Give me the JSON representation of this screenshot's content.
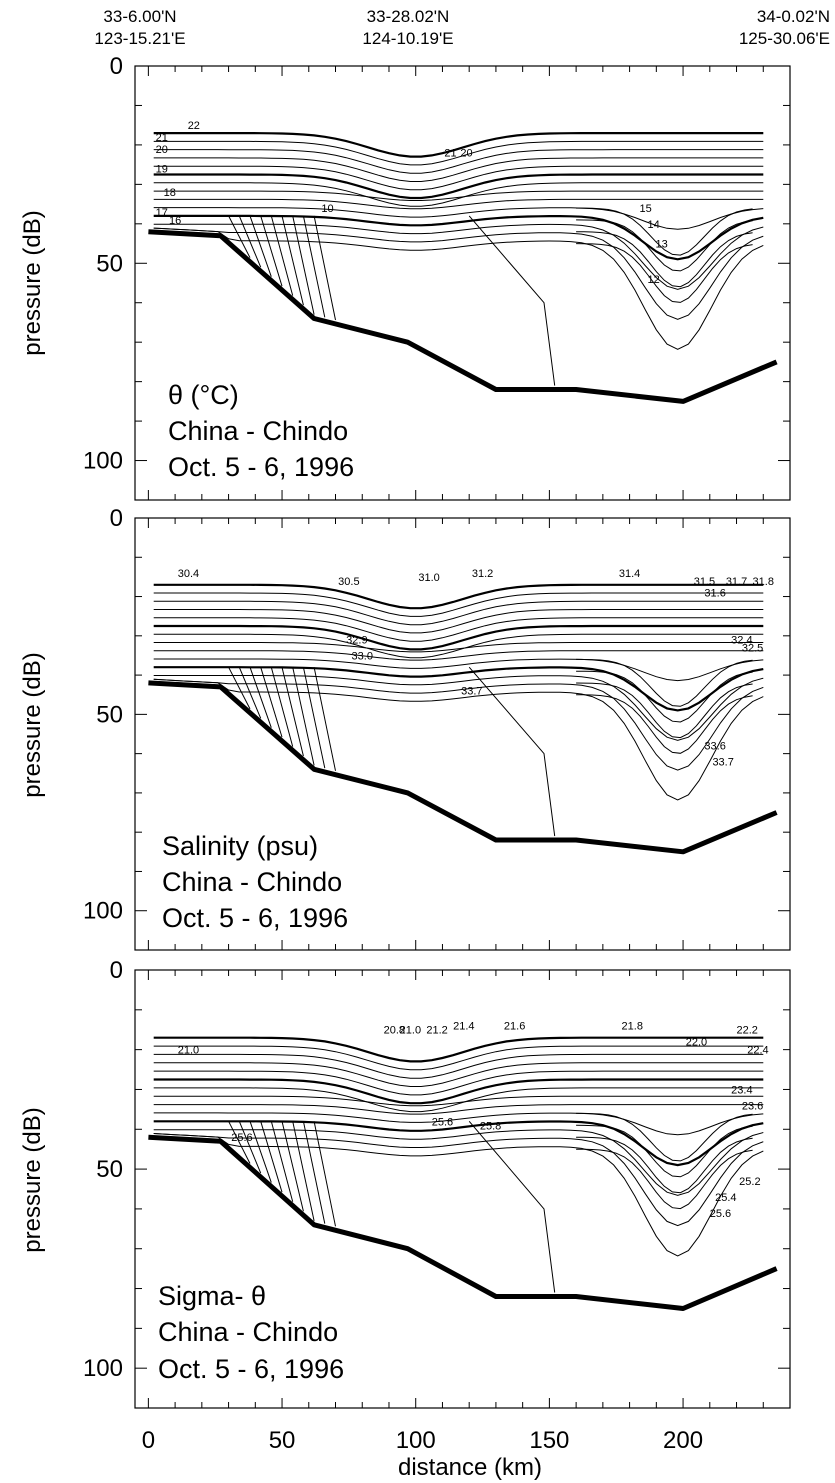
{
  "figure": {
    "top_coords": [
      {
        "lat": "33-6.00'N",
        "lon": "123-15.21'E",
        "at_km": 0
      },
      {
        "lat": "33-28.02'N",
        "lon": "124-10.19'E",
        "at_km": 100
      },
      {
        "lat": "34-0.02'N",
        "lon": "125-30.06'E",
        "at_km": 232
      }
    ],
    "xlabel": "distance (km)",
    "xticks": [
      0,
      50,
      100,
      150,
      200
    ],
    "colors": {
      "ink": "#000000",
      "background": "#ffffff"
    }
  },
  "chart_data": [
    {
      "type": "contour",
      "panel": "theta",
      "label_lines": [
        "θ  (°C)",
        "China - Chindo",
        "Oct. 5 - 6, 1996"
      ],
      "ylabel": "pressure (dB)",
      "yticks": [
        0,
        50,
        100
      ],
      "ylim": [
        0,
        110
      ],
      "xlim": [
        -5,
        240
      ],
      "bathymetry": [
        [
          0,
          42
        ],
        [
          27,
          43
        ],
        [
          62,
          64
        ],
        [
          97,
          70
        ],
        [
          130,
          82
        ],
        [
          160,
          82
        ],
        [
          200,
          85
        ],
        [
          235,
          75
        ]
      ],
      "contour_labels": [
        {
          "text": "22",
          "x": 17,
          "y": 16
        },
        {
          "text": "21",
          "x": 5,
          "y": 19
        },
        {
          "text": "20",
          "x": 5,
          "y": 22
        },
        {
          "text": "19",
          "x": 5,
          "y": 27
        },
        {
          "text": "18",
          "x": 8,
          "y": 33
        },
        {
          "text": "17",
          "x": 5,
          "y": 38
        },
        {
          "text": "16",
          "x": 10,
          "y": 40
        },
        {
          "text": "10",
          "x": 67,
          "y": 37
        },
        {
          "text": "21",
          "x": 113,
          "y": 23
        },
        {
          "text": "20",
          "x": 119,
          "y": 23
        },
        {
          "text": "15",
          "x": 186,
          "y": 37
        },
        {
          "text": "14",
          "x": 189,
          "y": 41
        },
        {
          "text": "13",
          "x": 192,
          "y": 46
        },
        {
          "text": "12",
          "x": 189,
          "y": 55
        }
      ]
    },
    {
      "type": "contour",
      "panel": "salinity",
      "label_lines": [
        "Salinity (psu)",
        "China - Chindo",
        "Oct. 5 - 6, 1996"
      ],
      "ylabel": "pressure (dB)",
      "yticks": [
        0,
        50,
        100
      ],
      "ylim": [
        0,
        110
      ],
      "xlim": [
        -5,
        240
      ],
      "bathymetry": [
        [
          0,
          42
        ],
        [
          27,
          43
        ],
        [
          62,
          64
        ],
        [
          97,
          70
        ],
        [
          130,
          82
        ],
        [
          160,
          82
        ],
        [
          200,
          85
        ],
        [
          235,
          75
        ]
      ],
      "contour_labels": [
        {
          "text": "30.4",
          "x": 15,
          "y": 15
        },
        {
          "text": "30.5",
          "x": 75,
          "y": 17
        },
        {
          "text": "31.0",
          "x": 105,
          "y": 16
        },
        {
          "text": "31.2",
          "x": 125,
          "y": 15
        },
        {
          "text": "31.4",
          "x": 180,
          "y": 15
        },
        {
          "text": "31.5",
          "x": 208,
          "y": 17
        },
        {
          "text": "31.6",
          "x": 212,
          "y": 20
        },
        {
          "text": "31.7",
          "x": 220,
          "y": 17
        },
        {
          "text": "31.8",
          "x": 230,
          "y": 17
        },
        {
          "text": "32.9",
          "x": 78,
          "y": 32
        },
        {
          "text": "33.0",
          "x": 80,
          "y": 36
        },
        {
          "text": "33.7",
          "x": 121,
          "y": 45
        },
        {
          "text": "32.4",
          "x": 222,
          "y": 32
        },
        {
          "text": "32.5",
          "x": 226,
          "y": 34
        },
        {
          "text": "33.6",
          "x": 212,
          "y": 59
        },
        {
          "text": "33.7",
          "x": 215,
          "y": 63
        }
      ]
    },
    {
      "type": "contour",
      "panel": "sigma_theta",
      "label_lines": [
        "Sigma- θ",
        "China - Chindo",
        "Oct. 5 - 6, 1996"
      ],
      "ylabel": "pressure (dB)",
      "yticks": [
        0,
        50,
        100
      ],
      "ylim": [
        0,
        110
      ],
      "xlim": [
        -5,
        240
      ],
      "bathymetry": [
        [
          0,
          42
        ],
        [
          27,
          43
        ],
        [
          62,
          64
        ],
        [
          97,
          70
        ],
        [
          130,
          82
        ],
        [
          160,
          82
        ],
        [
          200,
          85
        ],
        [
          235,
          75
        ]
      ],
      "contour_labels": [
        {
          "text": "21.0",
          "x": 15,
          "y": 21
        },
        {
          "text": "20.8",
          "x": 92,
          "y": 16
        },
        {
          "text": "21.0",
          "x": 98,
          "y": 16
        },
        {
          "text": "21.2",
          "x": 108,
          "y": 16
        },
        {
          "text": "21.4",
          "x": 118,
          "y": 15
        },
        {
          "text": "21.6",
          "x": 137,
          "y": 15
        },
        {
          "text": "21.8",
          "x": 181,
          "y": 15
        },
        {
          "text": "22.0",
          "x": 205,
          "y": 19
        },
        {
          "text": "22.2",
          "x": 224,
          "y": 16
        },
        {
          "text": "22.4",
          "x": 228,
          "y": 21
        },
        {
          "text": "23.4",
          "x": 222,
          "y": 31
        },
        {
          "text": "23.6",
          "x": 226,
          "y": 35
        },
        {
          "text": "25.6",
          "x": 110,
          "y": 39
        },
        {
          "text": "25.8",
          "x": 128,
          "y": 40
        },
        {
          "text": "25.2",
          "x": 225,
          "y": 54
        },
        {
          "text": "25.4",
          "x": 216,
          "y": 58
        },
        {
          "text": "25.6",
          "x": 214,
          "y": 62
        },
        {
          "text": "25.6",
          "x": 35,
          "y": 43
        }
      ]
    }
  ]
}
